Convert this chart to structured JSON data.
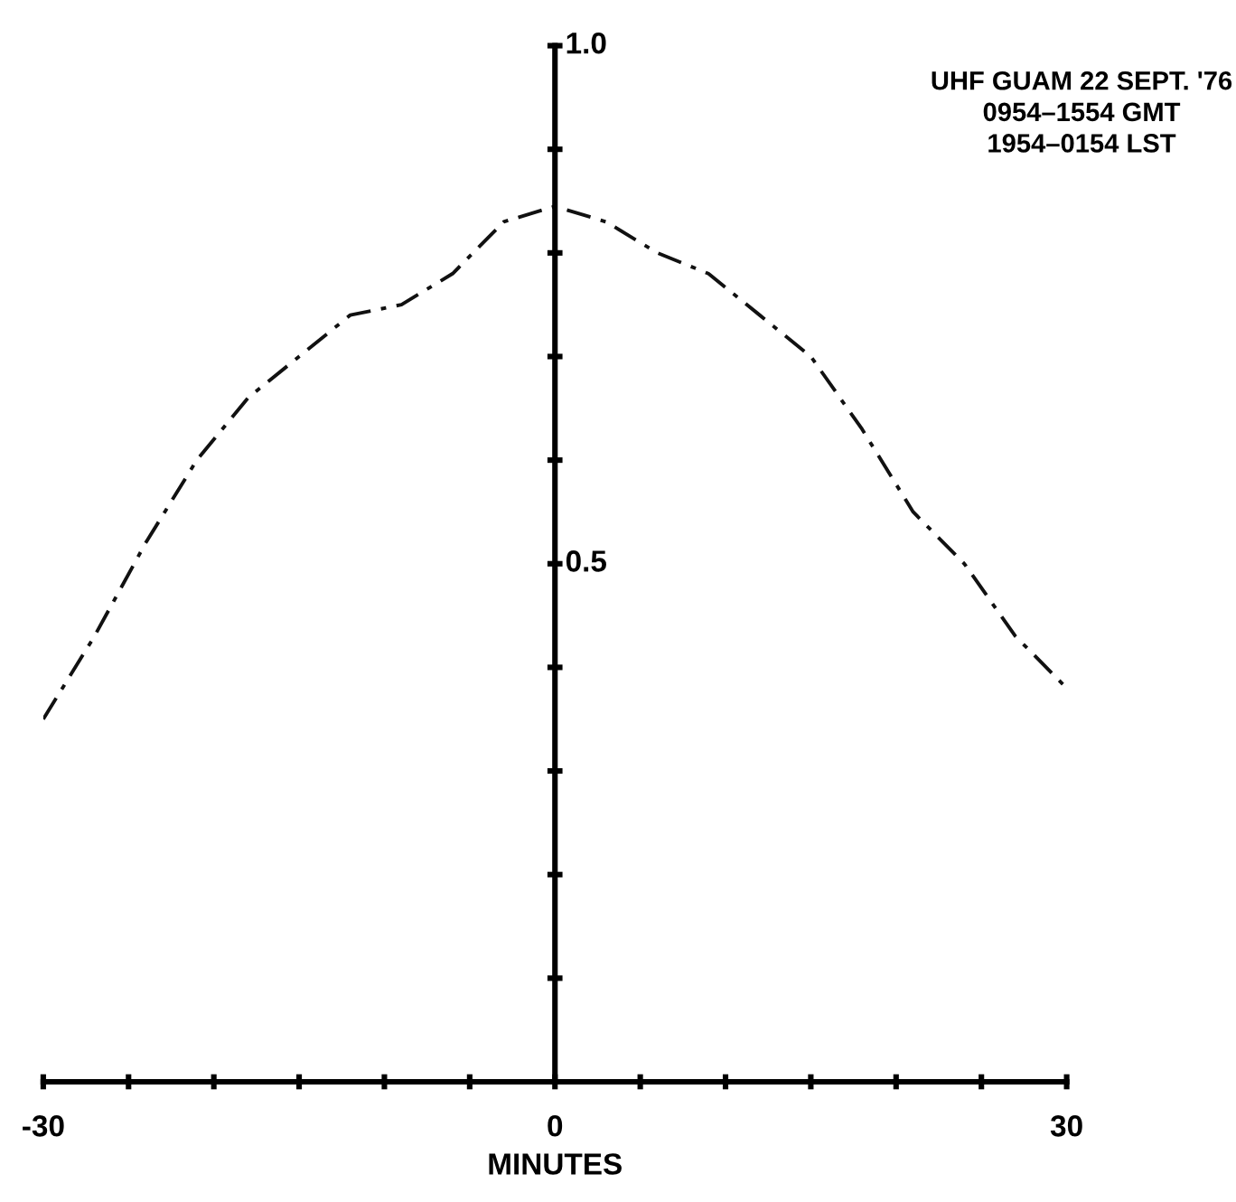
{
  "chart_data": {
    "type": "line",
    "xlabel": "MINUTES",
    "annotations": [
      "UHF GUAM 22 SEPT. '76",
      "0954–1554 GMT",
      "1954–0154 LST"
    ],
    "x": [
      -30,
      -27,
      -24,
      -21,
      -18,
      -15,
      -12,
      -9,
      -6,
      -3,
      0,
      3,
      6,
      9,
      12,
      15,
      18,
      21,
      24,
      27,
      30
    ],
    "series": [
      {
        "color": "#111111",
        "values": [
          0.35,
          0.43,
          0.52,
          0.6,
          0.66,
          0.7,
          0.74,
          0.75,
          0.78,
          0.83,
          0.845,
          0.83,
          0.8,
          0.78,
          0.74,
          0.7,
          0.63,
          0.55,
          0.5,
          0.43,
          0.38
        ]
      }
    ],
    "line_style": "dashdot",
    "marker": "none",
    "xlim": [
      -30,
      30
    ],
    "ylim": [
      0,
      1.0
    ],
    "xticks": [
      -30,
      {
        "value": -25,
        "label": null
      },
      {
        "value": -20,
        "label": null
      },
      {
        "value": -15,
        "label": null
      },
      {
        "value": -10,
        "label": null
      },
      {
        "value": -5,
        "label": null
      },
      0,
      {
        "value": 5,
        "label": null
      },
      {
        "value": 10,
        "label": null
      },
      {
        "value": 15,
        "label": null
      },
      {
        "value": 20,
        "label": null
      },
      {
        "value": 25,
        "label": null
      },
      30
    ],
    "yticks": [
      {
        "value": 0.1,
        "label": null
      },
      {
        "value": 0.2,
        "label": null
      },
      {
        "value": 0.3,
        "label": null
      },
      {
        "value": 0.4,
        "label": null
      },
      0.5,
      {
        "value": 0.6,
        "label": null
      },
      {
        "value": 0.7,
        "label": null
      },
      {
        "value": 0.8,
        "label": null
      },
      {
        "value": 0.9,
        "label": null
      },
      {
        "value": 1.0,
        "label": "1.0"
      }
    ],
    "grid": false,
    "legend": false
  }
}
